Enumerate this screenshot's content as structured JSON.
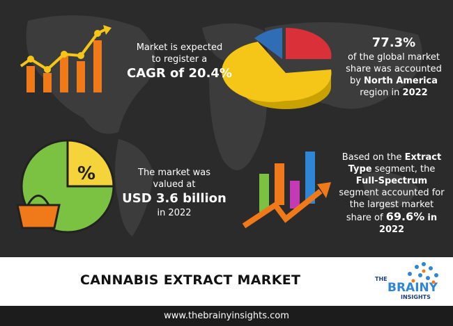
{
  "cagr": {
    "text": [
      "Market is expected",
      "to register a"
    ],
    "highlight": "CAGR of 20.4%"
  },
  "share": {
    "value": "77.3%",
    "text": [
      "of the global market",
      "share was accounted",
      "by"
    ],
    "region": "North America",
    "tail": "region in",
    "year": "2022"
  },
  "valuation": {
    "text": [
      "The market was",
      "valued at"
    ],
    "highlight": "USD 3.6 billion",
    "tail": "in 2022"
  },
  "segment": {
    "intro": "Based on the",
    "type": "Extract Type",
    "mid": "segment, the",
    "name": "Full-Spectrum",
    "text": "segment accounted for the largest market share of",
    "value": "69.6%",
    "year": "in 2022"
  },
  "title": "CANNABIS EXTRACT MARKET",
  "logo": [
    "THE",
    "BRAINY",
    "INSIGHTS"
  ],
  "url": "www.thebrainyinsights.com"
}
